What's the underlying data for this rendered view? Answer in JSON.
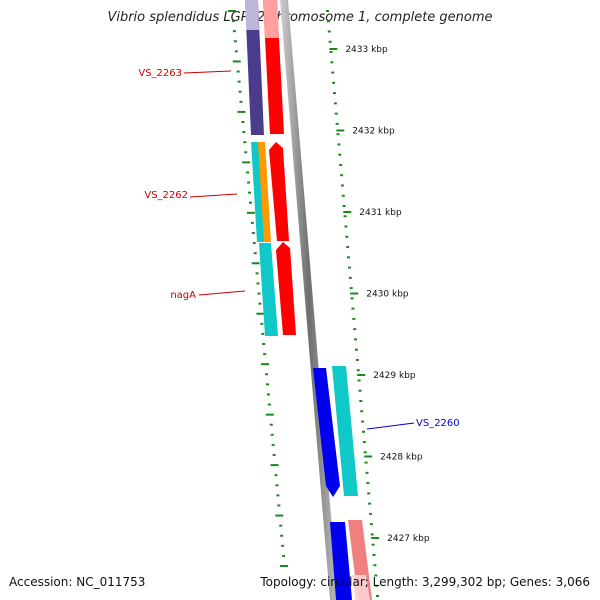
{
  "title": "Vibrio splendidus LGP32 chromosome 1, complete genome",
  "footer": {
    "accession": "Accession: NC_011753",
    "summary": "Topology: circular; Length: 3,299,302 bp; Genes: 3,066"
  },
  "ticks": [
    {
      "label": "2433 kbp"
    },
    {
      "label": "2432 kbp"
    },
    {
      "label": "2431 kbp"
    },
    {
      "label": "2430 kbp"
    },
    {
      "label": "2429 kbp"
    },
    {
      "label": "2428 kbp"
    },
    {
      "label": "2427 kbp"
    }
  ],
  "gene_labels": [
    {
      "text": "VS_2263",
      "color": "#cc0000"
    },
    {
      "text": "VS_2262",
      "color": "#cc0000"
    },
    {
      "text": "nagA",
      "color": "#cc0000"
    },
    {
      "text": "VS_2260",
      "color": "#0000cc"
    }
  ],
  "colors": {
    "backbone": "#7a7a7a",
    "ticks": "#1a8a1a",
    "red": "#ff0000",
    "lavender": "#4a3c8c",
    "cyan": "#10c8c8",
    "orange": "#ff9900",
    "blue": "#0000ee",
    "pink": "#f08080"
  }
}
